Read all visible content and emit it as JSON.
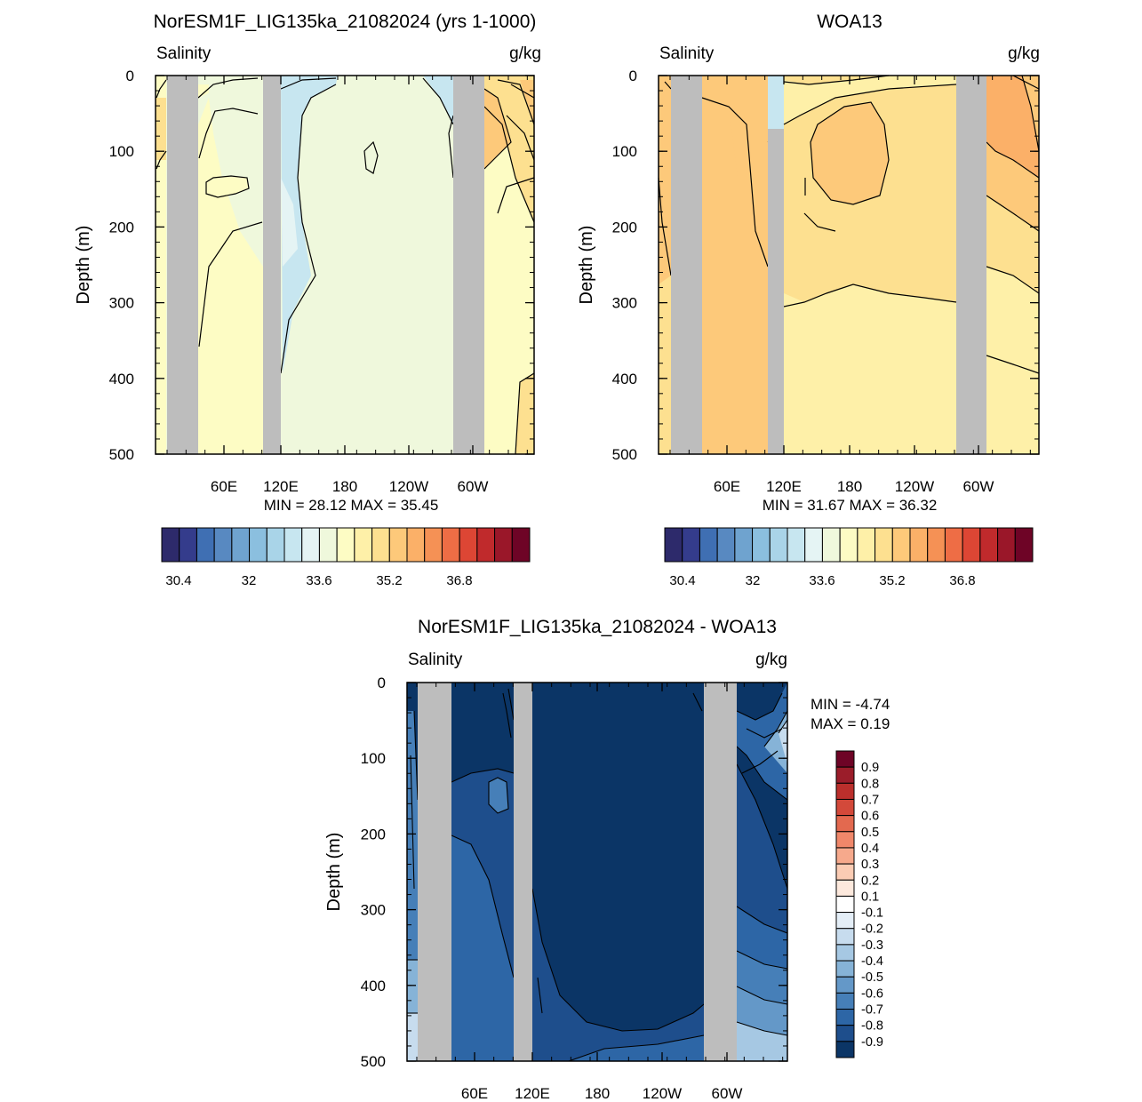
{
  "chart_data": [
    {
      "type": "heatmap",
      "title": "NorESM1F_LIG135ka_21082024 (yrs 1-1000)",
      "left_label": "Salinity",
      "right_label": "g/kg",
      "ylabel": "Depth (m)",
      "y_ticks": [
        "0",
        "100",
        "200",
        "300",
        "400",
        "500"
      ],
      "x_ticks": [
        "60E",
        "120E",
        "180",
        "120W",
        "60W"
      ],
      "ylim": [
        0,
        500
      ],
      "stats": "MIN =  28.12  MAX =  35.45",
      "colorbar_labels": [
        "30.4",
        "32",
        "33.6",
        "35.2",
        "36.8"
      ]
    },
    {
      "type": "heatmap",
      "title": "WOA13",
      "left_label": "Salinity",
      "right_label": "g/kg",
      "ylabel": "Depth (m)",
      "y_ticks": [
        "0",
        "100",
        "200",
        "300",
        "400",
        "500"
      ],
      "x_ticks": [
        "60E",
        "120E",
        "180",
        "120W",
        "60W"
      ],
      "ylim": [
        0,
        500
      ],
      "stats": "MIN =  31.67  MAX =  36.32",
      "colorbar_labels": [
        "30.4",
        "32",
        "33.6",
        "35.2",
        "36.8"
      ]
    },
    {
      "type": "heatmap",
      "title": "NorESM1F_LIG135ka_21082024 - WOA13",
      "left_label": "Salinity",
      "right_label": "g/kg",
      "ylabel": "Depth (m)",
      "y_ticks": [
        "0",
        "100",
        "200",
        "300",
        "400",
        "500"
      ],
      "x_ticks": [
        "60E",
        "120E",
        "180",
        "120W",
        "60W"
      ],
      "ylim": [
        0,
        500
      ],
      "stats_min": "MIN =  -4.74",
      "stats_max": "MAX =   0.19",
      "colorbar_labels": [
        "0.9",
        "0.8",
        "0.7",
        "0.6",
        "0.5",
        "0.4",
        "0.3",
        "0.2",
        "0.1",
        "-0.1",
        "-0.2",
        "-0.3",
        "-0.4",
        "-0.5",
        "-0.6",
        "-0.7",
        "-0.8",
        "-0.9"
      ]
    }
  ],
  "colors": {
    "land": "#bdbdbd",
    "salinity_scale": [
      "#2d2a6b",
      "#343c8c",
      "#3f6fb3",
      "#5889c1",
      "#6fa3cf",
      "#8bbfdf",
      "#a9d4e8",
      "#c7e6f0",
      "#e5f4f4",
      "#eff8dc",
      "#fdfcc4",
      "#fef0a8",
      "#fde090",
      "#fdc97a",
      "#fbb068",
      "#f59155",
      "#ee6d45",
      "#dd4634",
      "#c02a2c",
      "#9a1729",
      "#6e0426"
    ],
    "diff_scale": [
      "#6e0426",
      "#9b1d2a",
      "#bb2f2c",
      "#d3493a",
      "#e3694f",
      "#f0876a",
      "#f6a98c",
      "#fbccb4",
      "#fde9dd",
      "#ffffff",
      "#e4eef7",
      "#c7dcee",
      "#a6c8e3",
      "#86b3d7",
      "#6498c8",
      "#467fb8",
      "#2d66a6",
      "#1e4e8c",
      "#0b3566"
    ]
  }
}
